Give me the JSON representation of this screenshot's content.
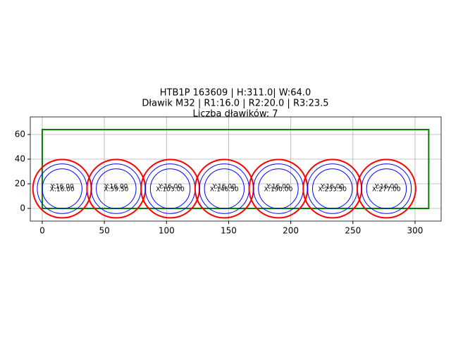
{
  "chart_data": {
    "type": "circles",
    "title": [
      "HTB1P 163609 | H:311.0| W:64.0",
      "Dławik M32 | R1:16.0 | R2:20.0 | R3:23.5",
      "Liczba dławików: 7"
    ],
    "x": [
      16,
      59.5,
      103,
      146.5,
      190,
      233.5,
      277
    ],
    "values": [
      16,
      16,
      16,
      16,
      16,
      16,
      16
    ],
    "x_labels": [
      "X:16.00",
      "X:59.50",
      "X:103.00",
      "X:146.50",
      "X:190.00",
      "X:233.50",
      "X:277.00"
    ],
    "value_labels": [
      "Y:16.00",
      "Y:16.00",
      "Y:16.00",
      "Y:16.00",
      "Y:16.00",
      "Y:16.00",
      "Y:16.00"
    ],
    "radii": [
      {
        "r": 16,
        "color": "#0000ff"
      },
      {
        "r": 20,
        "color": "#0000ff"
      },
      {
        "r": 23.5,
        "color": "#ff0000"
      }
    ],
    "rect": {
      "x": 0,
      "y": 0,
      "width": 311,
      "height": 64,
      "color": "#008000"
    },
    "xlim": [
      -9.6,
      321
    ],
    "ylim": [
      -10.3,
      74.3
    ],
    "xticks": [
      0,
      50,
      100,
      150,
      200,
      250,
      300
    ],
    "yticks": [
      0,
      20,
      40,
      60
    ],
    "grid": true
  }
}
